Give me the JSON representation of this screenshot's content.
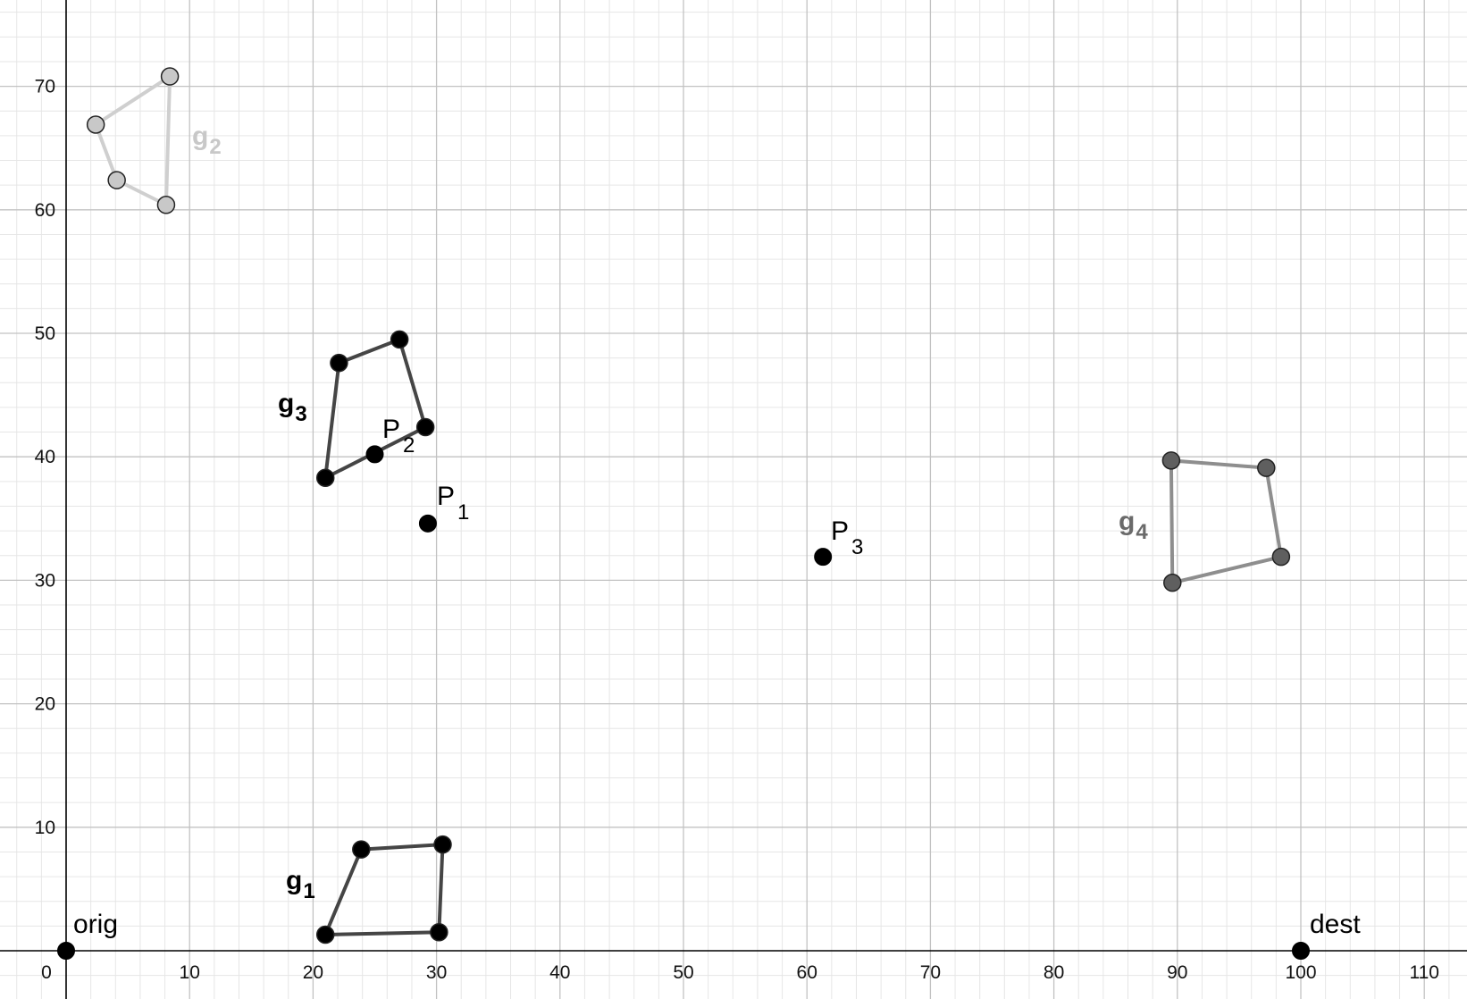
{
  "chart_data": {
    "type": "scatter",
    "xlim": [
      -5,
      113
    ],
    "ylim": [
      -4,
      77
    ],
    "grid": true,
    "x_ticks": [
      "0",
      "10",
      "20",
      "30",
      "40",
      "50",
      "60",
      "70",
      "80",
      "90",
      "100",
      "110"
    ],
    "y_ticks": [
      "10",
      "20",
      "30",
      "40",
      "50",
      "60",
      "70"
    ],
    "points": [
      {
        "name": "orig",
        "label": "orig",
        "x": 0,
        "y": 0
      },
      {
        "name": "dest",
        "label": "dest",
        "x": 100,
        "y": 0
      },
      {
        "name": "P1",
        "label": "P",
        "sub": "1",
        "x": 29.3,
        "y": 34.6
      },
      {
        "name": "P2",
        "label": "P",
        "sub": "2",
        "x": 25,
        "y": 40.2
      },
      {
        "name": "P3",
        "label": "P",
        "sub": "3",
        "x": 61.3,
        "y": 31.9
      }
    ],
    "polygons": [
      {
        "name": "g1",
        "label": "g",
        "sub": "1",
        "color": "#000000",
        "edge_color": "#454545",
        "vertices": [
          [
            21,
            1.3
          ],
          [
            23.9,
            8.2
          ],
          [
            30.5,
            8.6
          ],
          [
            30.2,
            1.5
          ]
        ]
      },
      {
        "name": "g2",
        "label": "g",
        "sub": "2",
        "color": "#c8c8c8",
        "edge_color": "#cfcfcf",
        "vertices": [
          [
            2.4,
            66.9
          ],
          [
            8.4,
            70.8
          ],
          [
            8.1,
            60.4
          ],
          [
            4.1,
            62.4
          ]
        ]
      },
      {
        "name": "g3",
        "label": "g",
        "sub": "3",
        "color": "#000000",
        "edge_color": "#454545",
        "vertices": [
          [
            21,
            38.3
          ],
          [
            22.1,
            47.6
          ],
          [
            27,
            49.5
          ],
          [
            29.1,
            42.4
          ]
        ]
      },
      {
        "name": "g4",
        "label": "g",
        "sub": "4",
        "color": "#5f5f5f",
        "edge_color": "#8e8e8e",
        "vertices": [
          [
            89.5,
            39.7
          ],
          [
            97.2,
            39.1
          ],
          [
            98.4,
            31.9
          ],
          [
            89.6,
            29.8
          ]
        ]
      }
    ]
  }
}
